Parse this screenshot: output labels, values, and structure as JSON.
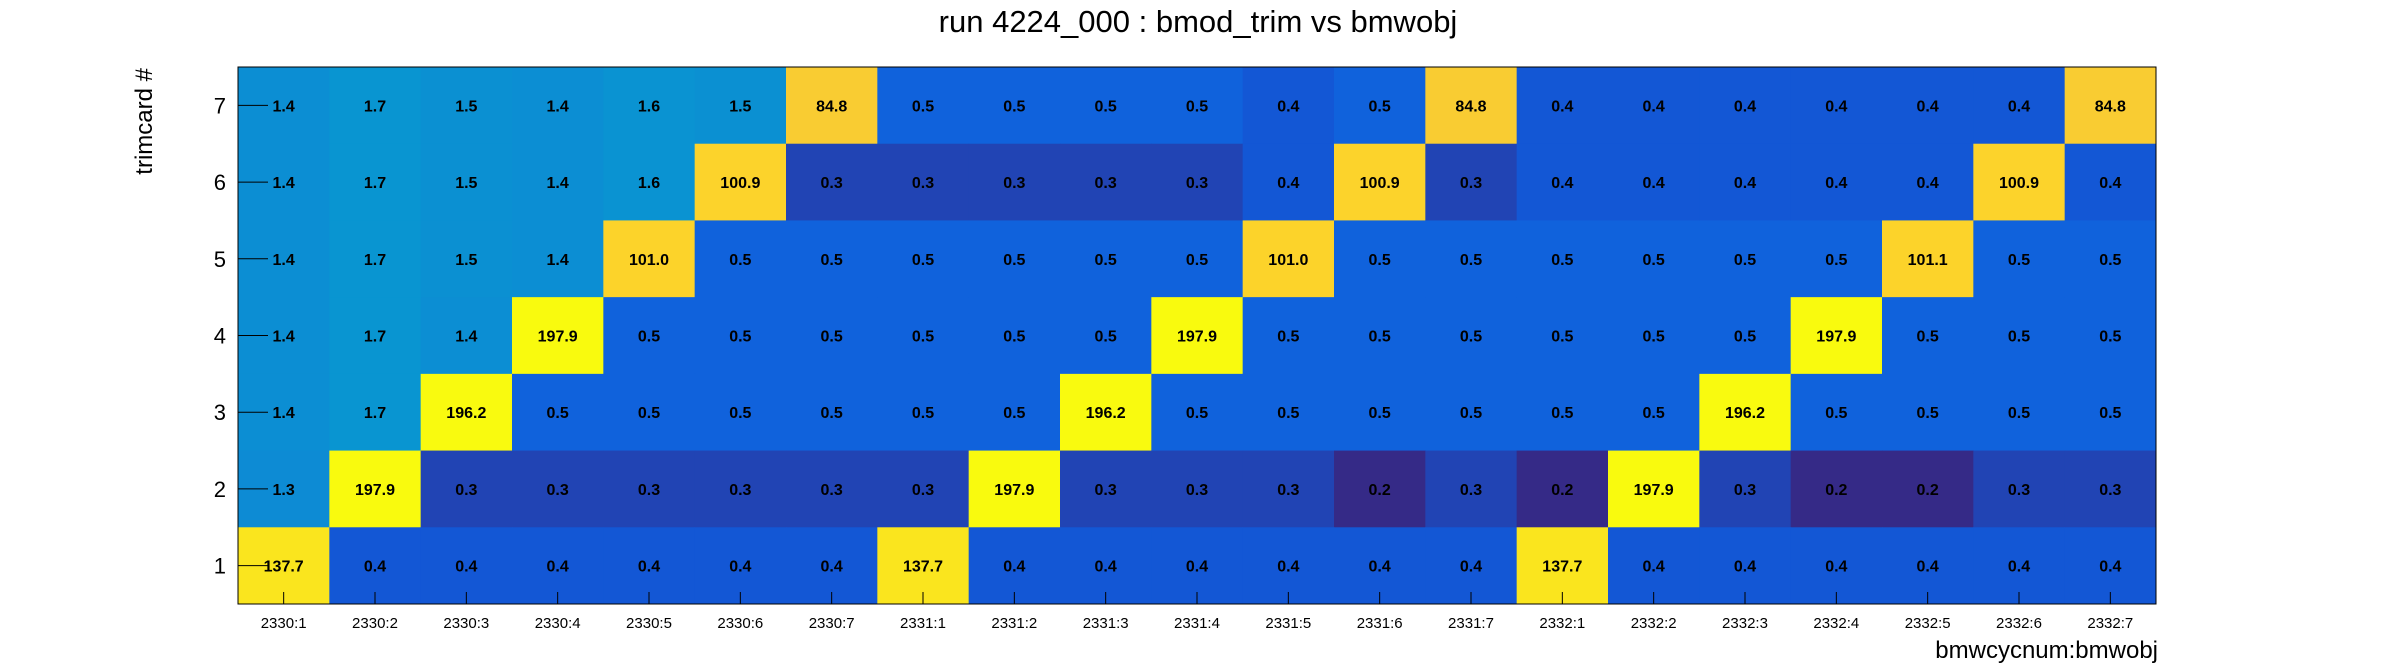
{
  "chart_data": {
    "type": "heatmap",
    "title": "run 4224_000 : bmod_trim vs bmwobj",
    "xlabel": "bmwcycnum:bmwobj",
    "ylabel": "trimcard #",
    "x_categories": [
      "2330:1",
      "2330:2",
      "2330:3",
      "2330:4",
      "2330:5",
      "2330:6",
      "2330:7",
      "2331:1",
      "2331:2",
      "2331:3",
      "2331:4",
      "2331:5",
      "2331:6",
      "2331:7",
      "2332:1",
      "2332:2",
      "2332:3",
      "2332:4",
      "2332:5",
      "2332:6",
      "2332:7"
    ],
    "y_categories": [
      "7",
      "6",
      "5",
      "4",
      "3",
      "2",
      "1"
    ],
    "cell_labels": [
      [
        "1.4",
        "1.7",
        "1.5",
        "1.4",
        "1.6",
        "1.5",
        "84.8",
        "0.5",
        "0.5",
        "0.5",
        "0.5",
        "0.4",
        "0.5",
        "84.8",
        "0.4",
        "0.4",
        "0.4",
        "0.4",
        "0.4",
        "0.4",
        "84.8"
      ],
      [
        "1.4",
        "1.7",
        "1.5",
        "1.4",
        "1.6",
        "100.9",
        "0.3",
        "0.3",
        "0.3",
        "0.3",
        "0.3",
        "0.4",
        "100.9",
        "0.3",
        "0.4",
        "0.4",
        "0.4",
        "0.4",
        "0.4",
        "100.9",
        "0.4"
      ],
      [
        "1.4",
        "1.7",
        "1.5",
        "1.4",
        "101.0",
        "0.5",
        "0.5",
        "0.5",
        "0.5",
        "0.5",
        "0.5",
        "101.0",
        "0.5",
        "0.5",
        "0.5",
        "0.5",
        "0.5",
        "0.5",
        "101.1",
        "0.5",
        "0.5"
      ],
      [
        "1.4",
        "1.7",
        "1.4",
        "197.9",
        "0.5",
        "0.5",
        "0.5",
        "0.5",
        "0.5",
        "0.5",
        "197.9",
        "0.5",
        "0.5",
        "0.5",
        "0.5",
        "0.5",
        "0.5",
        "197.9",
        "0.5",
        "0.5",
        "0.5"
      ],
      [
        "1.4",
        "1.7",
        "196.2",
        "0.5",
        "0.5",
        "0.5",
        "0.5",
        "0.5",
        "0.5",
        "196.2",
        "0.5",
        "0.5",
        "0.5",
        "0.5",
        "0.5",
        "0.5",
        "196.2",
        "0.5",
        "0.5",
        "0.5",
        "0.5"
      ],
      [
        "1.3",
        "197.9",
        "0.3",
        "0.3",
        "0.3",
        "0.3",
        "0.3",
        "0.3",
        "197.9",
        "0.3",
        "0.3",
        "0.3",
        "0.2",
        "0.3",
        "0.2",
        "197.9",
        "0.3",
        "0.2",
        "0.2",
        "0.3",
        "0.3"
      ],
      [
        "137.7",
        "0.4",
        "0.4",
        "0.4",
        "0.4",
        "0.4",
        "0.4",
        "137.7",
        "0.4",
        "0.4",
        "0.4",
        "0.4",
        "0.4",
        "0.4",
        "137.7",
        "0.4",
        "0.4",
        "0.4",
        "0.4",
        "0.4",
        "0.4"
      ]
    ],
    "grid": false,
    "legend": "none"
  }
}
